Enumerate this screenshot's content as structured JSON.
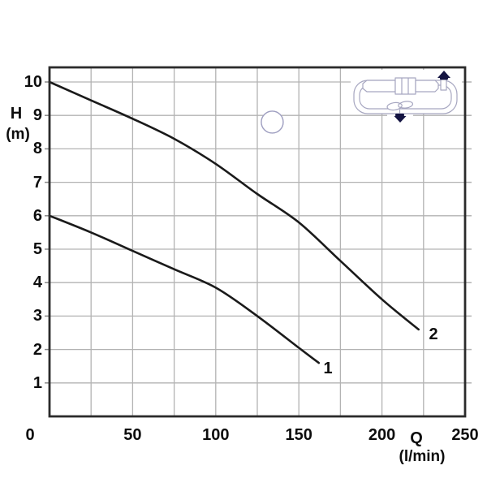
{
  "colors": {
    "background": "#ffffff",
    "curve": "#1a1a1a",
    "grid": "#b3b3b3",
    "axis_border": "#2b2b2b",
    "tick_label": "#0d0d0d",
    "schematic_line": "#a6a6c0",
    "schematic_arrow": "#141442",
    "marker_stroke": "#9e9ec0"
  },
  "chart_data": {
    "type": "line",
    "title": "",
    "xlabel": "Q",
    "xlabel_unit": "(l/min)",
    "ylabel": "H",
    "ylabel_unit": "(m)",
    "xlim": [
      0,
      250
    ],
    "ylim": [
      0,
      10.4
    ],
    "x_ticks": [
      0,
      50,
      100,
      150,
      200,
      250
    ],
    "y_ticks": [
      0,
      1,
      2,
      3,
      4,
      5,
      6,
      7,
      8,
      9,
      10
    ],
    "x_grid_step": 25,
    "y_grid_step": 1,
    "grid": true,
    "legend_position": "none",
    "series": [
      {
        "name": "curve-1",
        "label": "1",
        "x": [
          0,
          25,
          50,
          75,
          100,
          125,
          150,
          162
        ],
        "y": [
          6.0,
          5.5,
          4.95,
          4.4,
          3.85,
          3.0,
          2.05,
          1.6
        ]
      },
      {
        "name": "curve-2",
        "label": "2",
        "x": [
          0,
          25,
          50,
          75,
          100,
          125,
          150,
          175,
          200,
          222
        ],
        "y": [
          10.0,
          9.45,
          8.9,
          8.3,
          7.55,
          6.65,
          5.8,
          4.65,
          3.5,
          2.6
        ]
      }
    ],
    "marker_circle": {
      "q": 134,
      "h": 8.8
    }
  },
  "icons": {
    "schematic": "pump-circuit-diagram",
    "outlet_arrow": "outlet-arrow-up-icon",
    "inlet_arrow": "inlet-arrow-down-icon",
    "impeller": "impeller-icon"
  }
}
